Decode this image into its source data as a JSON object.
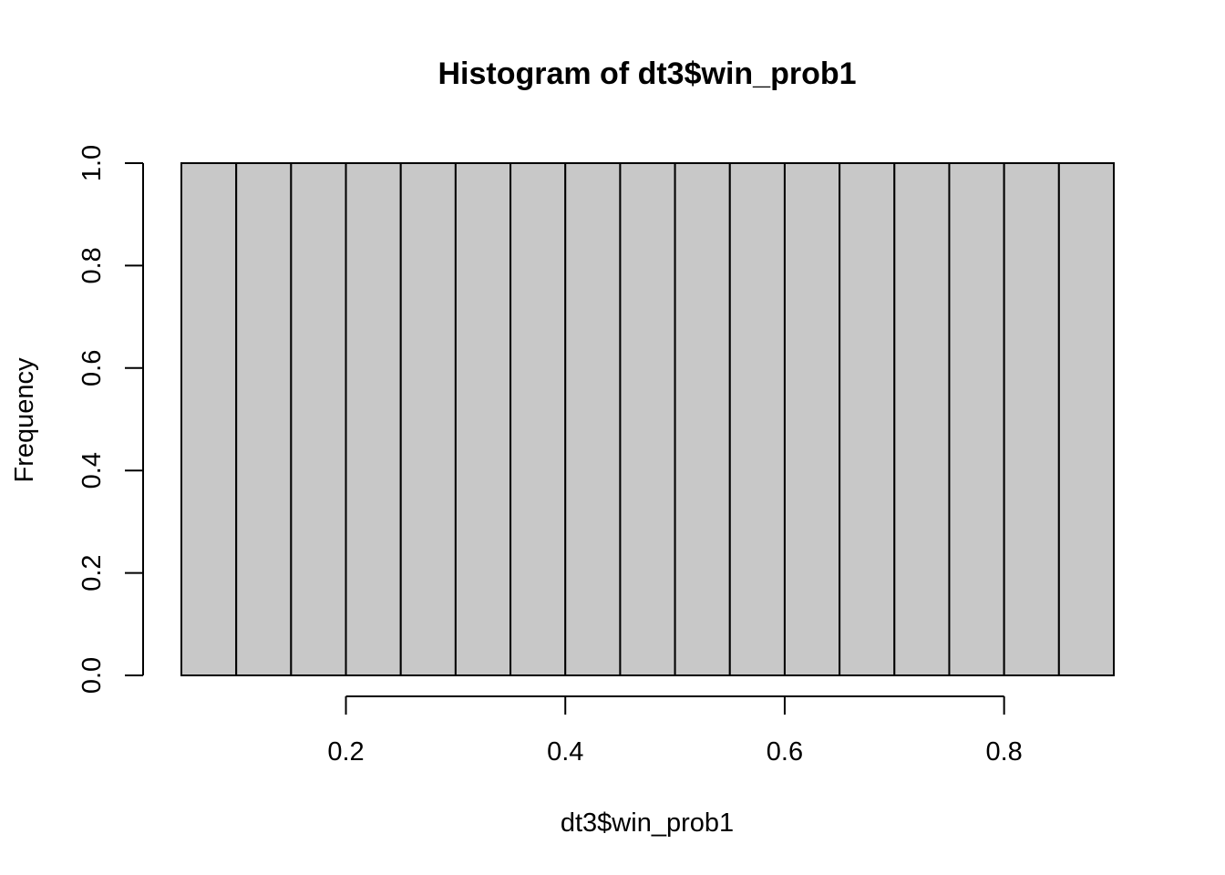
{
  "chart_data": {
    "type": "bar",
    "title": "Histogram of dt3$win_prob1",
    "xlabel": "dt3$win_prob1",
    "ylabel": "Frequency",
    "bins": [
      {
        "start": 0.05,
        "end": 0.1,
        "count": 1
      },
      {
        "start": 0.1,
        "end": 0.15,
        "count": 1
      },
      {
        "start": 0.15,
        "end": 0.2,
        "count": 1
      },
      {
        "start": 0.2,
        "end": 0.25,
        "count": 1
      },
      {
        "start": 0.25,
        "end": 0.3,
        "count": 1
      },
      {
        "start": 0.3,
        "end": 0.35,
        "count": 1
      },
      {
        "start": 0.35,
        "end": 0.4,
        "count": 1
      },
      {
        "start": 0.4,
        "end": 0.45,
        "count": 1
      },
      {
        "start": 0.45,
        "end": 0.5,
        "count": 1
      },
      {
        "start": 0.5,
        "end": 0.55,
        "count": 1
      },
      {
        "start": 0.55,
        "end": 0.6,
        "count": 1
      },
      {
        "start": 0.6,
        "end": 0.65,
        "count": 1
      },
      {
        "start": 0.65,
        "end": 0.7,
        "count": 1
      },
      {
        "start": 0.7,
        "end": 0.75,
        "count": 1
      },
      {
        "start": 0.75,
        "end": 0.8,
        "count": 1
      },
      {
        "start": 0.8,
        "end": 0.85,
        "count": 1
      },
      {
        "start": 0.85,
        "end": 0.9,
        "count": 1
      }
    ],
    "xlim": [
      0.05,
      0.9
    ],
    "ylim": [
      0,
      1.0
    ],
    "xticks": [
      0.2,
      0.4,
      0.6,
      0.8
    ],
    "xtick_labels": [
      "0.2",
      "0.4",
      "0.6",
      "0.8"
    ],
    "yticks": [
      0.0,
      0.2,
      0.4,
      0.6,
      0.8,
      1.0
    ],
    "ytick_labels": [
      "0.0",
      "0.2",
      "0.4",
      "0.6",
      "0.8",
      "1.0"
    ],
    "grid": false,
    "colors": {
      "bar_fill": "#c8c8c8",
      "bar_stroke": "#000000"
    }
  }
}
